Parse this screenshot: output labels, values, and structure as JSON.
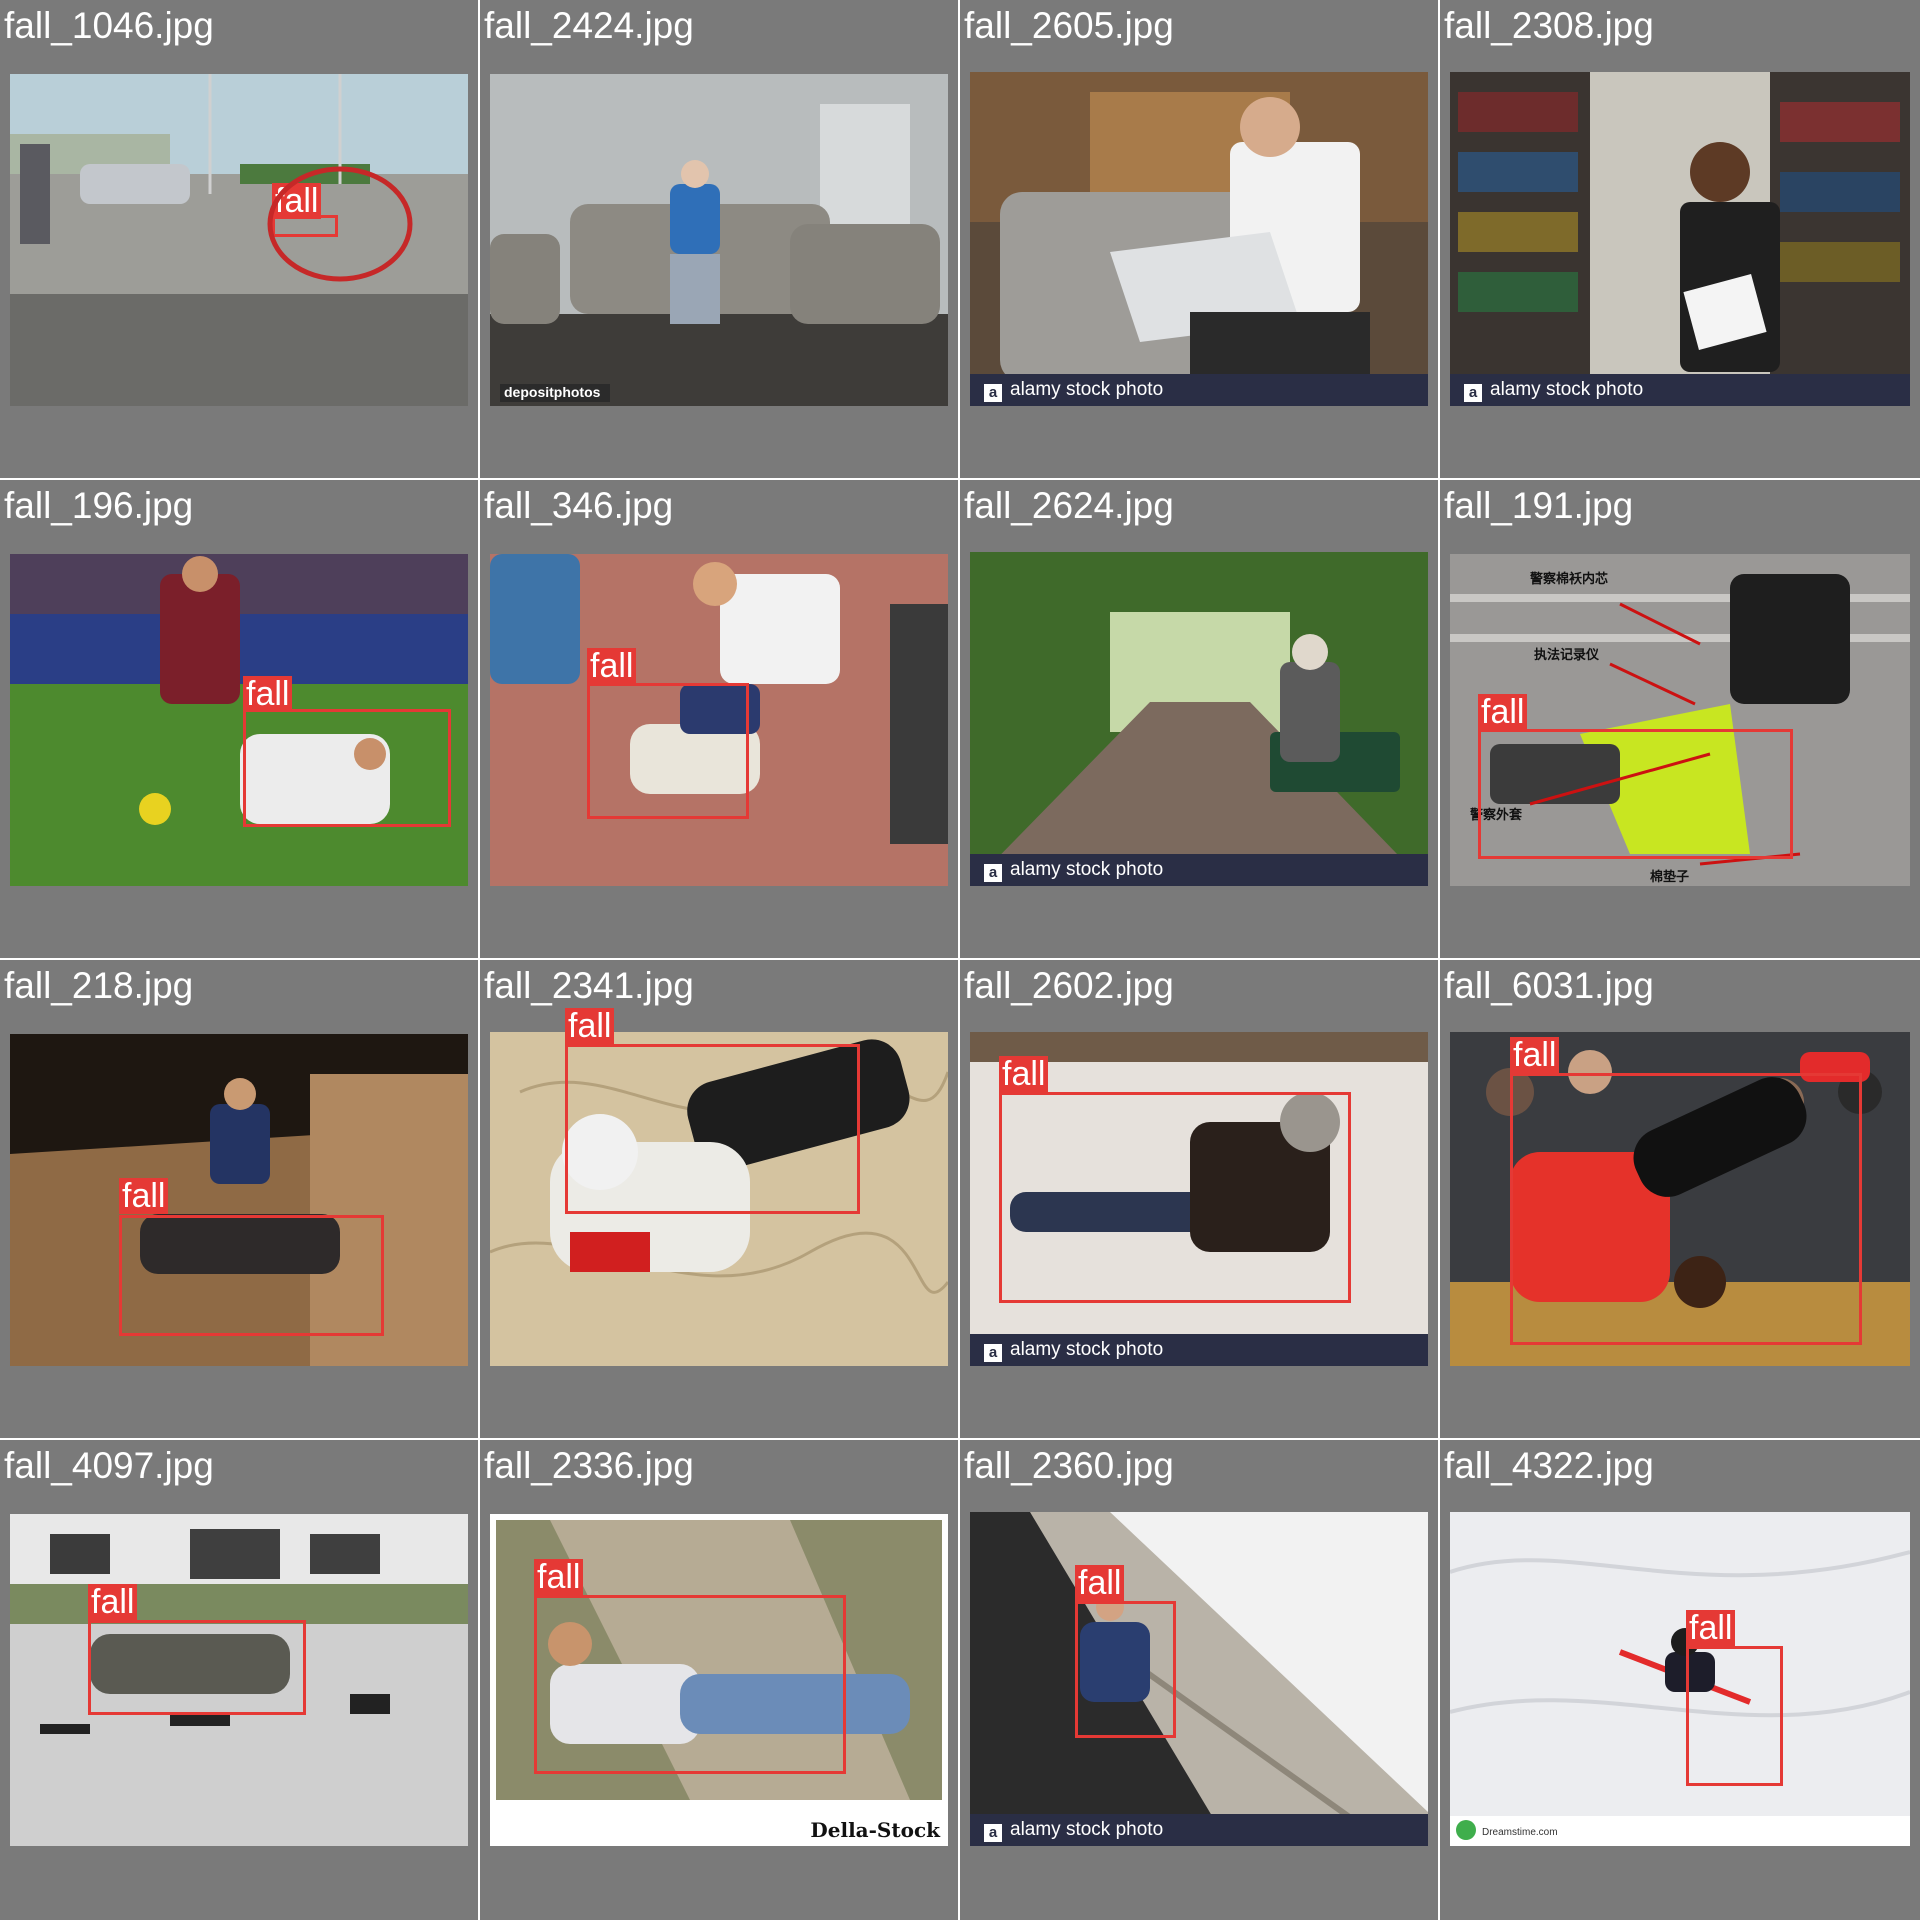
{
  "grid": {
    "columns": 4,
    "rows": 4,
    "background": "#7a7a7a",
    "box_color": "#e53935",
    "label_color": "#ffffff"
  },
  "tiles": [
    {
      "filename": "fall_1046.jpg",
      "scene": "street-accident",
      "label": "fall"
    },
    {
      "filename": "fall_2424.jpg",
      "scene": "elderly-sofa",
      "label": "",
      "watermark": "depositphotos"
    },
    {
      "filename": "fall_2605.jpg",
      "scene": "man-laptop",
      "label": "",
      "watermark": "alamy stock photo"
    },
    {
      "filename": "fall_2308.jpg",
      "scene": "library",
      "label": "",
      "watermark": "alamy stock photo"
    },
    {
      "filename": "fall_196.jpg",
      "scene": "soccer",
      "label": "fall"
    },
    {
      "filename": "fall_346.jpg",
      "scene": "crowd-help",
      "label": "fall"
    },
    {
      "filename": "fall_2624.jpg",
      "scene": "park-bench",
      "label": "",
      "watermark": "alamy stock photo"
    },
    {
      "filename": "fall_191.jpg",
      "scene": "police-demo",
      "label": "fall",
      "annotations": [
        "警察棉袄内芯",
        "执法记录仪",
        "警察外套",
        "棉垫子"
      ]
    },
    {
      "filename": "fall_218.jpg",
      "scene": "night-street",
      "label": "fall"
    },
    {
      "filename": "fall_2341.jpg",
      "scene": "elderly-carpet",
      "label": "fall"
    },
    {
      "filename": "fall_2602.jpg",
      "scene": "snow-man",
      "label": "fall",
      "watermark": "alamy stock photo"
    },
    {
      "filename": "fall_6031.jpg",
      "scene": "basketball",
      "label": "fall"
    },
    {
      "filename": "fall_4097.jpg",
      "scene": "soldier",
      "label": "fall"
    },
    {
      "filename": "fall_2336.jpg",
      "scene": "dirt-path",
      "label": "fall",
      "watermark": "Della-Stock"
    },
    {
      "filename": "fall_2360.jpg",
      "scene": "stairs",
      "label": "fall",
      "watermark": "alamy stock photo"
    },
    {
      "filename": "fall_4322.jpg",
      "scene": "ski-snow",
      "label": "fall",
      "watermark": "Dreamstime.com"
    }
  ]
}
